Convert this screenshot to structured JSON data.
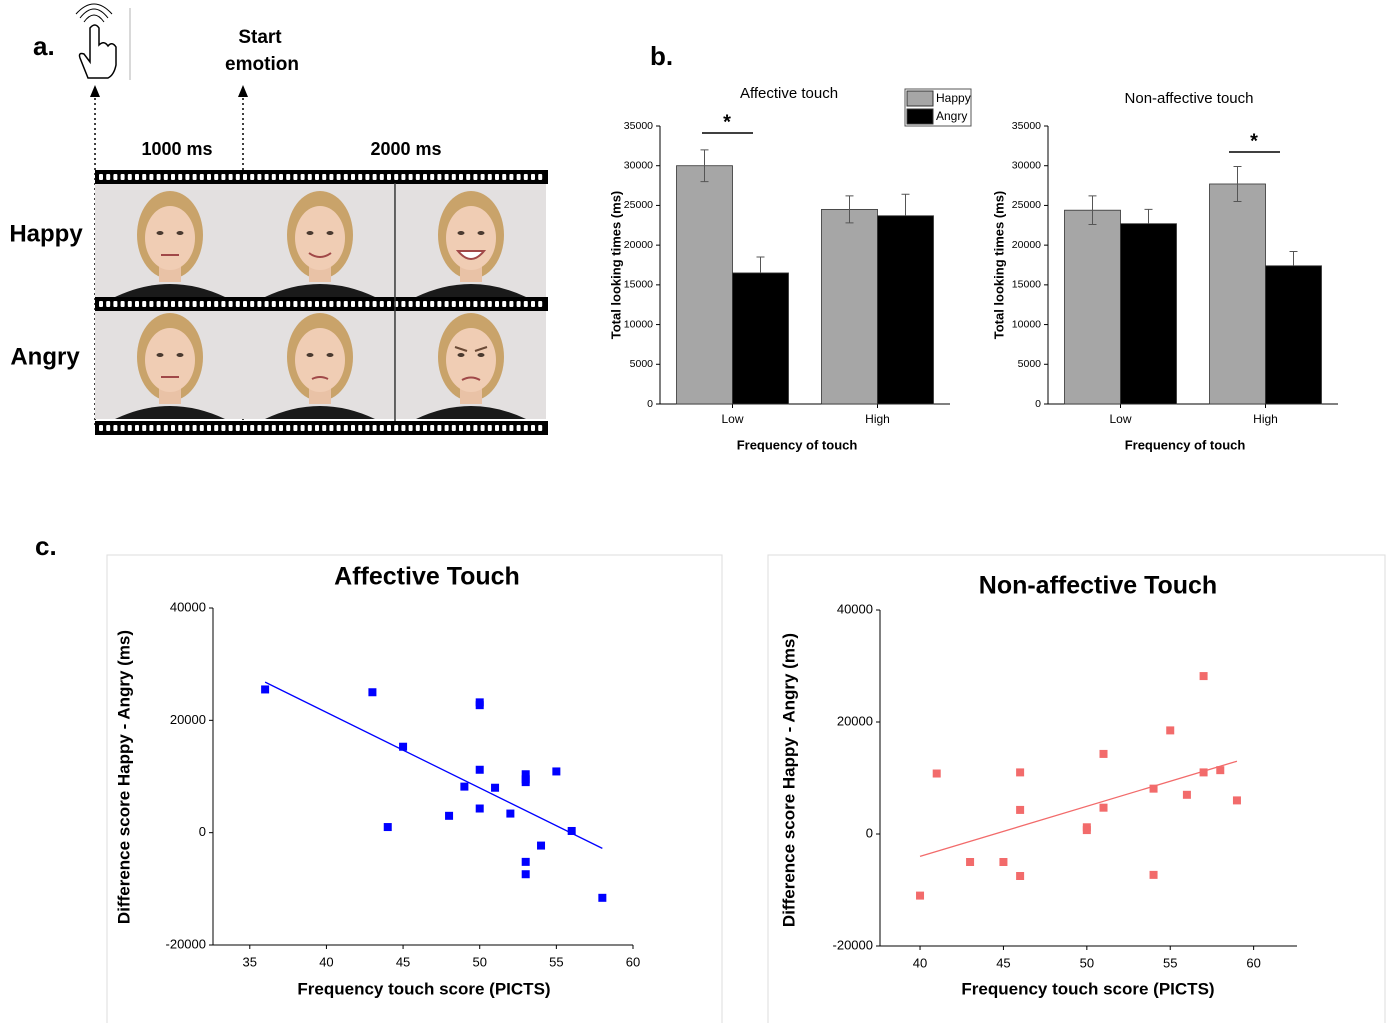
{
  "panel_a": {
    "label": "a.",
    "start_label": [
      "Start",
      "emotion"
    ],
    "durations": [
      "1000 ms",
      "2000 ms"
    ],
    "rows": [
      "Happy",
      "Angry"
    ]
  },
  "panel_labels": [
    "b.",
    "c."
  ],
  "chart_data": [
    {
      "type": "bar",
      "title": "Affective touch",
      "x_label": "Frequency of touch",
      "y_label": "Total looking times (ms)",
      "categories": [
        "Low",
        "High"
      ],
      "series": [
        {
          "name": "Happy",
          "color": "#a6a6a6",
          "values": [
            30000,
            24500
          ],
          "errors": [
            2000,
            1700
          ]
        },
        {
          "name": "Angry",
          "color": "#000000",
          "values": [
            16500,
            23700
          ],
          "errors": [
            2000,
            2700
          ]
        }
      ],
      "ylim": [
        0,
        35000
      ],
      "yticks": [
        0,
        5000,
        10000,
        15000,
        20000,
        25000,
        30000,
        35000
      ],
      "legend": "top-right",
      "annotations": [
        "*"
      ]
    },
    {
      "type": "bar",
      "title": "Non-affective touch",
      "x_label": "Frequency of touch",
      "y_label": "Total looking times (ms)",
      "categories": [
        "Low",
        "High"
      ],
      "series": [
        {
          "color": "#a6a6a6",
          "values": [
            24400,
            27700
          ],
          "errors": [
            1800,
            2200
          ]
        },
        {
          "color": "#000000",
          "values": [
            22700,
            17400
          ],
          "errors": [
            1800,
            1800
          ]
        }
      ],
      "ylim": [
        0,
        35000
      ],
      "yticks": [
        0,
        5000,
        10000,
        15000,
        20000,
        25000,
        30000,
        35000
      ],
      "annotations": [
        "*"
      ]
    },
    {
      "type": "scatter",
      "title": "Affective Touch",
      "x_label": "Frequency touch score (PICTS)",
      "y_label": "Difference score Happy - Angry (ms)",
      "color": "#0000ff",
      "x": [
        36,
        43,
        44,
        45,
        48,
        49,
        50,
        50,
        50,
        50,
        51,
        52,
        53,
        53,
        53,
        53,
        53,
        54,
        55,
        56,
        58
      ],
      "y": [
        25500,
        25000,
        1000,
        15300,
        3000,
        8200,
        23200,
        22700,
        11200,
        4300,
        8000,
        3400,
        10400,
        9500,
        9000,
        -5200,
        -7400,
        -2300,
        10900,
        300,
        -11600
      ],
      "trendline": {
        "x": [
          36,
          58
        ],
        "y": [
          26800,
          -2800
        ]
      },
      "xlim": [
        32.6,
        60
      ],
      "ylim": [
        -20000,
        40000
      ],
      "xticks": [
        35,
        40,
        45,
        50,
        55,
        60
      ],
      "yticks": [
        -20000,
        0,
        20000,
        40000
      ]
    },
    {
      "type": "scatter",
      "title": "Non-affective Touch",
      "x_label": "Frequency touch score (PICTS)",
      "y_label": "Difference score Happy - Angry (ms)",
      "color": "#f26b6b",
      "x": [
        40,
        41,
        43,
        45,
        46,
        46,
        46,
        50,
        50,
        51,
        51,
        54,
        54,
        55,
        56,
        57,
        57,
        58,
        59
      ],
      "y": [
        -11000,
        10800,
        -5000,
        -5000,
        11000,
        4300,
        -7500,
        1200,
        700,
        14300,
        4700,
        8100,
        -7300,
        18500,
        7000,
        28200,
        11000,
        11400,
        6000
      ],
      "trendline": {
        "x": [
          40,
          59
        ],
        "y": [
          -4000,
          13000
        ]
      },
      "xlim": [
        37.6,
        62.6
      ],
      "ylim": [
        -20000,
        40000
      ],
      "xticks": [
        40,
        45,
        50,
        55,
        60
      ],
      "yticks": [
        -20000,
        0,
        20000,
        40000
      ]
    }
  ]
}
